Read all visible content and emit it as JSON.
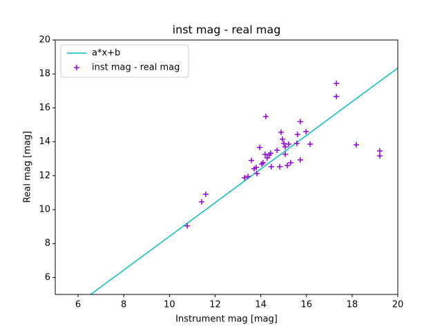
{
  "chart_data": {
    "type": "scatter",
    "title": "inst mag - real mag",
    "xlabel": "Instrument mag [mag]",
    "ylabel": "Real mag [mag]",
    "xlim": [
      5,
      20
    ],
    "ylim": [
      5,
      20
    ],
    "xticks": [
      6,
      8,
      10,
      12,
      14,
      16,
      18,
      20
    ],
    "yticks": [
      6,
      8,
      10,
      12,
      14,
      16,
      18,
      20
    ],
    "grid": false,
    "legend": "upper left",
    "series": [
      {
        "name": "a*x+b",
        "style": "line",
        "color": "#00bfbf",
        "x": [
          6.55,
          20
        ],
        "values": [
          5,
          18.35
        ]
      },
      {
        "name": "inst mag - real mag",
        "style": "markers",
        "color": "#9400d3",
        "x": [
          10.78,
          11.41,
          11.59,
          13.29,
          13.44,
          13.59,
          13.71,
          13.8,
          13.83,
          13.95,
          14.04,
          14.1,
          14.19,
          14.22,
          14.28,
          14.37,
          14.43,
          14.46,
          14.71,
          14.83,
          14.89,
          14.95,
          15.01,
          15.07,
          15.07,
          15.16,
          15.22,
          15.31,
          15.58,
          15.61,
          15.73,
          15.73,
          15.98,
          16.16,
          17.31,
          17.31,
          18.18,
          19.21,
          19.21
        ],
        "values": [
          9.04,
          10.46,
          10.91,
          11.88,
          11.96,
          12.9,
          12.41,
          12.49,
          12.13,
          13.67,
          12.69,
          12.77,
          13.26,
          15.49,
          13.05,
          13.22,
          13.33,
          12.53,
          13.5,
          12.53,
          14.56,
          14.15,
          13.9,
          13.7,
          13.26,
          12.6,
          13.86,
          12.77,
          13.9,
          14.43,
          12.93,
          15.19,
          14.6,
          13.86,
          17.44,
          16.67,
          13.82,
          13.46,
          13.17
        ]
      }
    ]
  }
}
